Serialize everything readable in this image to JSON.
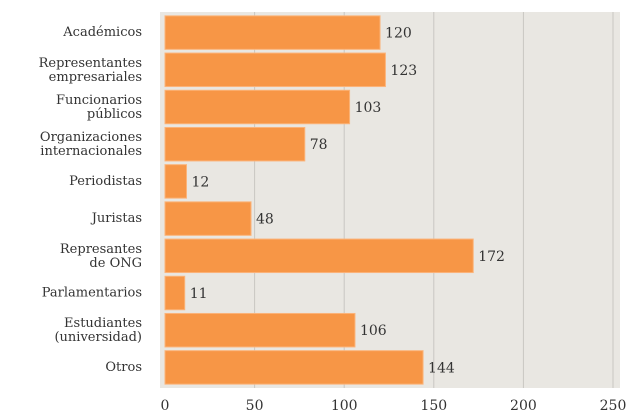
{
  "chart_data": {
    "type": "bar",
    "orientation": "horizontal",
    "categories": [
      "Académicos",
      "Representantes empresariales",
      "Funcionarios públicos",
      "Organizaciones internacionales",
      "Periodistas",
      "Juristas",
      "Represantes de ONG",
      "Parlamentarios",
      "Estudiantes (universidad)",
      "Otros"
    ],
    "values": [
      120,
      123,
      103,
      78,
      12,
      48,
      172,
      11,
      106,
      144
    ],
    "color": "#f79646",
    "xlim": [
      0,
      250
    ],
    "xticks": [
      0,
      50,
      100,
      150,
      200,
      250
    ],
    "grid": true
  }
}
